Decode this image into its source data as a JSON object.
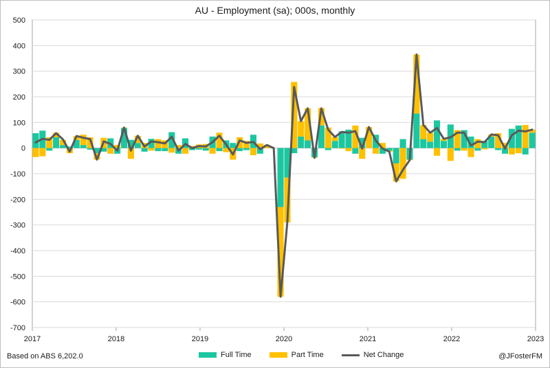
{
  "chart_data": {
    "type": "bar",
    "title": "AU - Employment (sa); 000s, monthly",
    "ylim": [
      -700,
      500
    ],
    "yticks": [
      500,
      400,
      300,
      200,
      100,
      0,
      -100,
      -200,
      -300,
      -400,
      -500,
      -600,
      -700
    ],
    "xlim": [
      2017,
      2023
    ],
    "xticks": [
      "2017",
      "2018",
      "2019",
      "2020",
      "2021",
      "2022",
      "2023"
    ],
    "grid": true,
    "legend_position": "bottom",
    "stacked": true,
    "series": [
      {
        "name": "Full Time",
        "type": "bar",
        "color": "#1cc7a0",
        "values": [
          58,
          68,
          -10,
          42,
          12,
          6,
          32,
          12,
          -6,
          -20,
          -14,
          38,
          -22,
          78,
          32,
          20,
          -14,
          36,
          -12,
          -12,
          62,
          -22,
          38,
          -8,
          -6,
          -10,
          45,
          -12,
          30,
          20,
          -12,
          -8,
          52,
          -22,
          0,
          0,
          -230,
          -115,
          -20,
          45,
          30,
          -36,
          88,
          -8,
          28,
          65,
          72,
          -22,
          40,
          0,
          52,
          -22,
          -10,
          -60,
          35,
          -45,
          135,
          35,
          25,
          108,
          28,
          92,
          -10,
          70,
          45,
          -10,
          28,
          45,
          -8,
          -22,
          75,
          88,
          -25,
          60
        ]
      },
      {
        "name": "Part Time",
        "type": "bar",
        "color": "#ffc000",
        "values": [
          -35,
          -32,
          42,
          18,
          20,
          -20,
          15,
          40,
          42,
          -25,
          40,
          -22,
          12,
          2,
          -42,
          28,
          20,
          -10,
          35,
          30,
          -18,
          12,
          -22,
          8,
          14,
          16,
          -22,
          60,
          -16,
          -45,
          42,
          28,
          -28,
          18,
          12,
          0,
          -350,
          -175,
          258,
          60,
          125,
          -2,
          68,
          80,
          15,
          -2,
          -12,
          88,
          -42,
          82,
          -22,
          20,
          -4,
          -70,
          -120,
          -2,
          230,
          55,
          35,
          -30,
          8,
          -50,
          70,
          -10,
          -35,
          35,
          -5,
          8,
          58,
          20,
          -25,
          -20,
          90,
          12
        ]
      },
      {
        "name": "Net Change",
        "type": "line",
        "color": "#595959",
        "values": [
          22,
          36,
          32,
          58,
          34,
          -14,
          47,
          40,
          35,
          -45,
          26,
          16,
          -10,
          80,
          -10,
          48,
          6,
          26,
          23,
          18,
          44,
          -10,
          16,
          0,
          8,
          6,
          23,
          48,
          14,
          -25,
          30,
          20,
          24,
          -4,
          12,
          0,
          -580,
          -290,
          238,
          105,
          155,
          -38,
          155,
          72,
          43,
          63,
          60,
          66,
          -2,
          82,
          30,
          -2,
          -14,
          -130,
          -85,
          -47,
          365,
          90,
          60,
          78,
          36,
          42,
          60,
          60,
          10,
          25,
          23,
          53,
          50,
          -2,
          50,
          68,
          65,
          72
        ]
      }
    ]
  },
  "footer": {
    "source": "Based on ABS 6,202.0",
    "handle": "@JFosterFM"
  },
  "legend": {
    "full_time": "Full Time",
    "part_time": "Part Time",
    "net_change": "Net Change"
  },
  "colors": {
    "full_time": "#1cc7a0",
    "part_time": "#ffc000",
    "net_change": "#595959",
    "grid": "#d9d9d9",
    "axis": "#a6a6a6"
  }
}
